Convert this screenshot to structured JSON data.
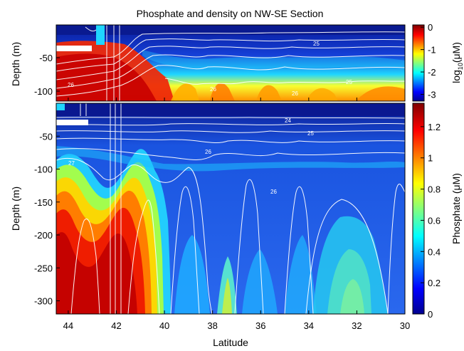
{
  "chart_data": {
    "type": "heatmap",
    "title": "Phosphate and density on NW-SE Section",
    "xlabel": "Latitude",
    "x_ticks": [
      "44",
      "42",
      "40",
      "38",
      "36",
      "34",
      "32",
      "30"
    ],
    "xlim": [
      44.5,
      30
    ],
    "panels": [
      {
        "ylabel": "Depth (m)",
        "ylim": [
          -115,
          0
        ],
        "y_ticks": [
          "-50",
          "-100"
        ],
        "colorbar_label_main": "log",
        "colorbar_label_sub": "10",
        "colorbar_label_unit": "(μM)",
        "colorbar_range": [
          -3.3,
          0.1
        ],
        "colorbar_ticks": [
          "0",
          "-1",
          "-2",
          "-3"
        ],
        "contour_labels": [
          "26",
          "26",
          "26",
          "25",
          "25"
        ]
      },
      {
        "ylabel": "Depth (m)",
        "ylim": [
          -320,
          0
        ],
        "y_ticks": [
          "-50",
          "-100",
          "-150",
          "-200",
          "-250",
          "-300"
        ],
        "colorbar_label": "Phosphate (μM)",
        "colorbar_range": [
          0,
          1.35
        ],
        "colorbar_ticks": [
          "1.2",
          "1",
          "0.8",
          "0.6",
          "0.4",
          "0.2",
          "0"
        ],
        "contour_labels": [
          "24",
          "25",
          "26",
          "26",
          "27"
        ]
      }
    ]
  }
}
